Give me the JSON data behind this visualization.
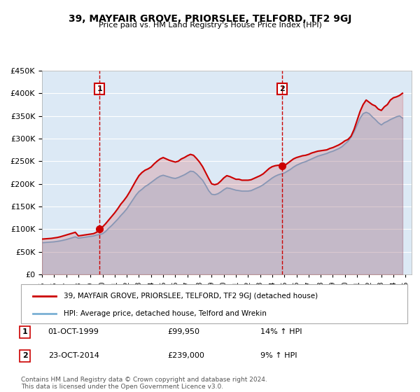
{
  "title": "39, MAYFAIR GROVE, PRIORSLEE, TELFORD, TF2 9GJ",
  "subtitle": "Price paid vs. HM Land Registry's House Price Index (HPI)",
  "red_label": "39, MAYFAIR GROVE, PRIORSLEE, TELFORD, TF2 9GJ (detached house)",
  "blue_label": "HPI: Average price, detached house, Telford and Wrekin",
  "annotation1_label": "1",
  "annotation1_date": "01-OCT-1999",
  "annotation1_price": "£99,950",
  "annotation1_hpi": "14% ↑ HPI",
  "annotation2_label": "2",
  "annotation2_date": "23-OCT-2014",
  "annotation2_price": "£239,000",
  "annotation2_hpi": "9% ↑ HPI",
  "footnote": "Contains HM Land Registry data © Crown copyright and database right 2024.\nThis data is licensed under the Open Government Licence v3.0.",
  "marker1_x": 1999.75,
  "marker1_y": 99950,
  "marker2_x": 2014.8,
  "marker2_y": 239000,
  "vline1_x": 1999.75,
  "vline2_x": 2014.8,
  "ylim": [
    0,
    450000
  ],
  "xlim": [
    1995,
    2025.5
  ],
  "background_color": "#dce9f5",
  "plot_bg": "#dce9f5",
  "red_color": "#cc0000",
  "blue_color": "#7ab0d4",
  "vline_color": "#cc0000",
  "grid_color": "#ffffff",
  "red_data_x": [
    1995.0,
    1995.25,
    1995.5,
    1995.75,
    1996.0,
    1996.25,
    1996.5,
    1996.75,
    1997.0,
    1997.25,
    1997.5,
    1997.75,
    1998.0,
    1998.25,
    1998.5,
    1998.75,
    1999.0,
    1999.25,
    1999.5,
    1999.75,
    2000.0,
    2000.25,
    2000.5,
    2000.75,
    2001.0,
    2001.25,
    2001.5,
    2001.75,
    2002.0,
    2002.25,
    2002.5,
    2002.75,
    2003.0,
    2003.25,
    2003.5,
    2003.75,
    2004.0,
    2004.25,
    2004.5,
    2004.75,
    2005.0,
    2005.25,
    2005.5,
    2005.75,
    2006.0,
    2006.25,
    2006.5,
    2006.75,
    2007.0,
    2007.25,
    2007.5,
    2007.75,
    2008.0,
    2008.25,
    2008.5,
    2008.75,
    2009.0,
    2009.25,
    2009.5,
    2009.75,
    2010.0,
    2010.25,
    2010.5,
    2010.75,
    2011.0,
    2011.25,
    2011.5,
    2011.75,
    2012.0,
    2012.25,
    2012.5,
    2012.75,
    2013.0,
    2013.25,
    2013.5,
    2013.75,
    2014.0,
    2014.25,
    2014.5,
    2014.75,
    2015.0,
    2015.25,
    2015.5,
    2015.75,
    2016.0,
    2016.25,
    2016.5,
    2016.75,
    2017.0,
    2017.25,
    2017.5,
    2017.75,
    2018.0,
    2018.25,
    2018.5,
    2018.75,
    2019.0,
    2019.25,
    2019.5,
    2019.75,
    2020.0,
    2020.25,
    2020.5,
    2020.75,
    2021.0,
    2021.25,
    2021.5,
    2021.75,
    2022.0,
    2022.25,
    2022.5,
    2022.75,
    2023.0,
    2023.25,
    2023.5,
    2023.75,
    2024.0,
    2024.25,
    2024.5,
    2024.75
  ],
  "red_data_y": [
    78000,
    78500,
    79000,
    79500,
    80500,
    81500,
    83000,
    85000,
    87000,
    89000,
    91000,
    93000,
    85000,
    86000,
    87000,
    88000,
    89000,
    90000,
    93000,
    99950,
    105000,
    112000,
    120000,
    128000,
    136000,
    145000,
    155000,
    163000,
    172000,
    183000,
    195000,
    207000,
    218000,
    225000,
    230000,
    233000,
    237000,
    244000,
    250000,
    255000,
    258000,
    255000,
    252000,
    250000,
    248000,
    250000,
    255000,
    258000,
    262000,
    265000,
    263000,
    256000,
    248000,
    238000,
    225000,
    212000,
    200000,
    198000,
    200000,
    206000,
    213000,
    218000,
    216000,
    213000,
    210000,
    210000,
    208000,
    208000,
    208000,
    209000,
    212000,
    215000,
    218000,
    222000,
    228000,
    234000,
    238000,
    240000,
    241000,
    239000,
    240000,
    245000,
    250000,
    255000,
    258000,
    260000,
    262000,
    263000,
    265000,
    268000,
    270000,
    272000,
    273000,
    274000,
    275000,
    278000,
    280000,
    283000,
    286000,
    290000,
    295000,
    298000,
    305000,
    320000,
    340000,
    360000,
    375000,
    385000,
    380000,
    375000,
    372000,
    365000,
    362000,
    370000,
    375000,
    385000,
    390000,
    392000,
    395000,
    400000
  ],
  "blue_data_x": [
    1995.0,
    1995.25,
    1995.5,
    1995.75,
    1996.0,
    1996.25,
    1996.5,
    1996.75,
    1997.0,
    1997.25,
    1997.5,
    1997.75,
    1998.0,
    1998.25,
    1998.5,
    1998.75,
    1999.0,
    1999.25,
    1999.5,
    1999.75,
    2000.0,
    2000.25,
    2000.5,
    2000.75,
    2001.0,
    2001.25,
    2001.5,
    2001.75,
    2002.0,
    2002.25,
    2002.5,
    2002.75,
    2003.0,
    2003.25,
    2003.5,
    2003.75,
    2004.0,
    2004.25,
    2004.5,
    2004.75,
    2005.0,
    2005.25,
    2005.5,
    2005.75,
    2006.0,
    2006.25,
    2006.5,
    2006.75,
    2007.0,
    2007.25,
    2007.5,
    2007.75,
    2008.0,
    2008.25,
    2008.5,
    2008.75,
    2009.0,
    2009.25,
    2009.5,
    2009.75,
    2010.0,
    2010.25,
    2010.5,
    2010.75,
    2011.0,
    2011.25,
    2011.5,
    2011.75,
    2012.0,
    2012.25,
    2012.5,
    2012.75,
    2013.0,
    2013.25,
    2013.5,
    2013.75,
    2014.0,
    2014.25,
    2014.5,
    2014.75,
    2015.0,
    2015.25,
    2015.5,
    2015.75,
    2016.0,
    2016.25,
    2016.5,
    2016.75,
    2017.0,
    2017.25,
    2017.5,
    2017.75,
    2018.0,
    2018.25,
    2018.5,
    2018.75,
    2019.0,
    2019.25,
    2019.5,
    2019.75,
    2020.0,
    2020.25,
    2020.5,
    2020.75,
    2021.0,
    2021.25,
    2021.5,
    2021.75,
    2022.0,
    2022.25,
    2022.5,
    2022.75,
    2023.0,
    2023.25,
    2023.5,
    2023.75,
    2024.0,
    2024.25,
    2024.5,
    2024.75
  ],
  "blue_data_y": [
    70000,
    70500,
    71000,
    71500,
    72000,
    73000,
    74000,
    75500,
    77000,
    79000,
    81000,
    83000,
    80000,
    81000,
    82000,
    83000,
    84000,
    85000,
    87000,
    88000,
    90000,
    95000,
    102000,
    108000,
    115000,
    122000,
    130000,
    137000,
    145000,
    155000,
    165000,
    175000,
    183000,
    188000,
    194000,
    198000,
    203000,
    208000,
    213000,
    217000,
    219000,
    217000,
    215000,
    213000,
    212000,
    214000,
    217000,
    220000,
    224000,
    228000,
    227000,
    222000,
    215000,
    208000,
    197000,
    185000,
    177000,
    176000,
    178000,
    182000,
    187000,
    191000,
    190000,
    188000,
    186000,
    185000,
    184000,
    184000,
    184000,
    185000,
    188000,
    191000,
    194000,
    198000,
    203000,
    208000,
    213000,
    217000,
    220000,
    222000,
    224000,
    228000,
    232000,
    237000,
    241000,
    244000,
    247000,
    249000,
    252000,
    255000,
    258000,
    261000,
    263000,
    265000,
    267000,
    270000,
    272000,
    275000,
    278000,
    282000,
    288000,
    294000,
    303000,
    315000,
    330000,
    345000,
    355000,
    358000,
    355000,
    348000,
    342000,
    335000,
    330000,
    335000,
    338000,
    342000,
    345000,
    348000,
    350000,
    345000
  ]
}
